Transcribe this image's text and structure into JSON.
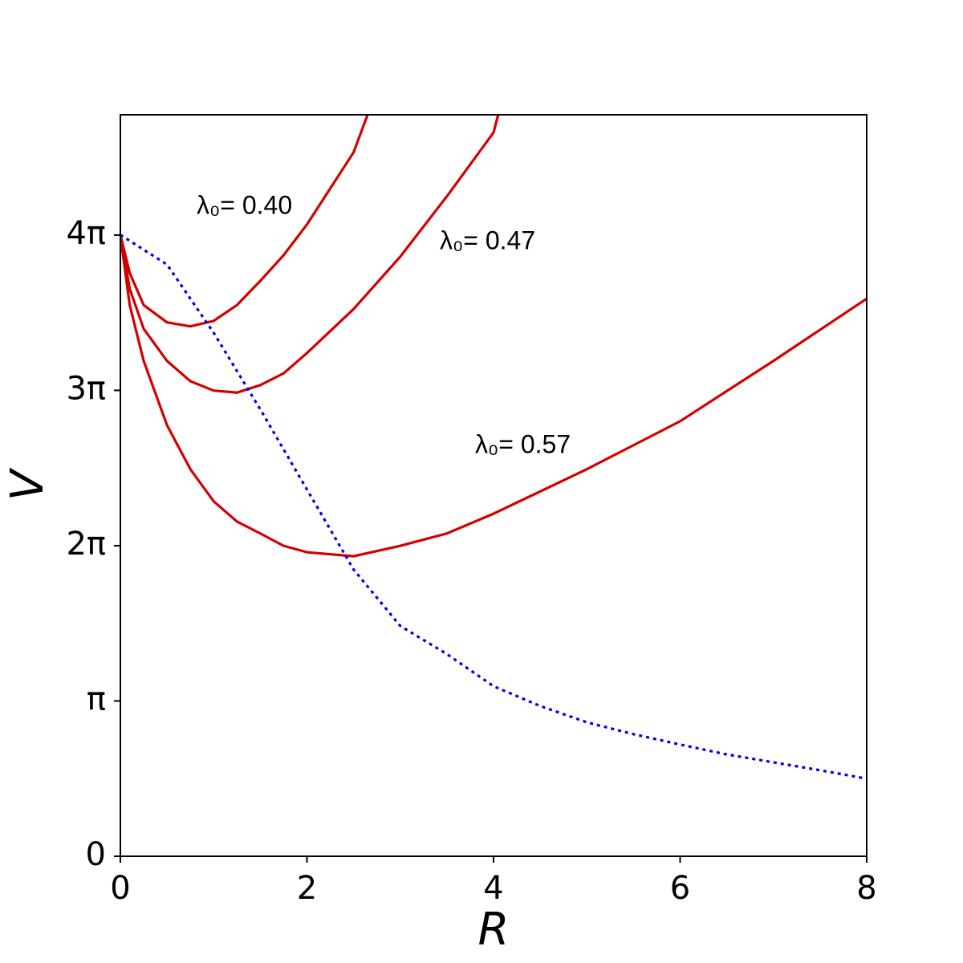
{
  "chart_data": {
    "type": "line",
    "x_label": "R",
    "y_label": "V",
    "xlim": [
      0,
      8
    ],
    "ylim": [
      0,
      15.0
    ],
    "xticks": [
      0,
      2,
      4,
      6,
      8
    ],
    "yticks": [
      0,
      {
        "value": 3.14159,
        "label": "π"
      },
      {
        "value": 6.28319,
        "label": "2π"
      },
      {
        "value": 9.42478,
        "label": "3π"
      },
      {
        "value": 12.56637,
        "label": "4π"
      }
    ],
    "grid": false,
    "series": [
      {
        "name": "λ₀= 0.40",
        "color": "#d40000",
        "style": "solid",
        "x": [
          0,
          0.1,
          0.25,
          0.5,
          0.75,
          1.0,
          1.25,
          1.5,
          1.75,
          2.0,
          2.25,
          2.5,
          2.65
        ],
        "values": [
          12.57,
          11.8,
          11.15,
          10.8,
          10.72,
          10.83,
          11.15,
          11.64,
          12.16,
          12.78,
          13.51,
          14.24,
          15.0
        ]
      },
      {
        "name": "λ₀= 0.47",
        "color": "#d40000",
        "style": "solid",
        "x": [
          0,
          0.1,
          0.25,
          0.5,
          0.75,
          1.0,
          1.25,
          1.5,
          1.75,
          2.0,
          2.5,
          3.0,
          3.5,
          4.0,
          4.05
        ],
        "values": [
          12.57,
          11.48,
          10.67,
          10.02,
          9.61,
          9.42,
          9.38,
          9.53,
          9.77,
          10.18,
          11.07,
          12.13,
          13.35,
          14.64,
          15.0
        ]
      },
      {
        "name": "λ₀= 0.57",
        "color": "#d40000",
        "style": "solid",
        "x": [
          0,
          0.1,
          0.25,
          0.5,
          0.75,
          1.0,
          1.25,
          1.5,
          1.75,
          2.0,
          2.5,
          3.0,
          3.5,
          4.0,
          5.0,
          6.0,
          7.0,
          8.0
        ],
        "values": [
          12.57,
          11.15,
          10.02,
          8.72,
          7.83,
          7.18,
          6.77,
          6.53,
          6.28,
          6.15,
          6.07,
          6.28,
          6.53,
          6.93,
          7.83,
          8.8,
          10.02,
          11.28
        ]
      },
      {
        "color": "#0000ee",
        "style": "dotted",
        "x": [
          0,
          0.5,
          1.0,
          1.5,
          2.0,
          2.5,
          3.0,
          3.5,
          4.0,
          4.5,
          5.0,
          5.5,
          6.0,
          6.5,
          7.0,
          7.5,
          8.0
        ],
        "values": [
          12.57,
          11.97,
          10.59,
          9.04,
          7.42,
          5.8,
          4.66,
          4.09,
          3.44,
          3.04,
          2.71,
          2.47,
          2.26,
          2.06,
          1.9,
          1.74,
          1.57
        ]
      }
    ]
  }
}
